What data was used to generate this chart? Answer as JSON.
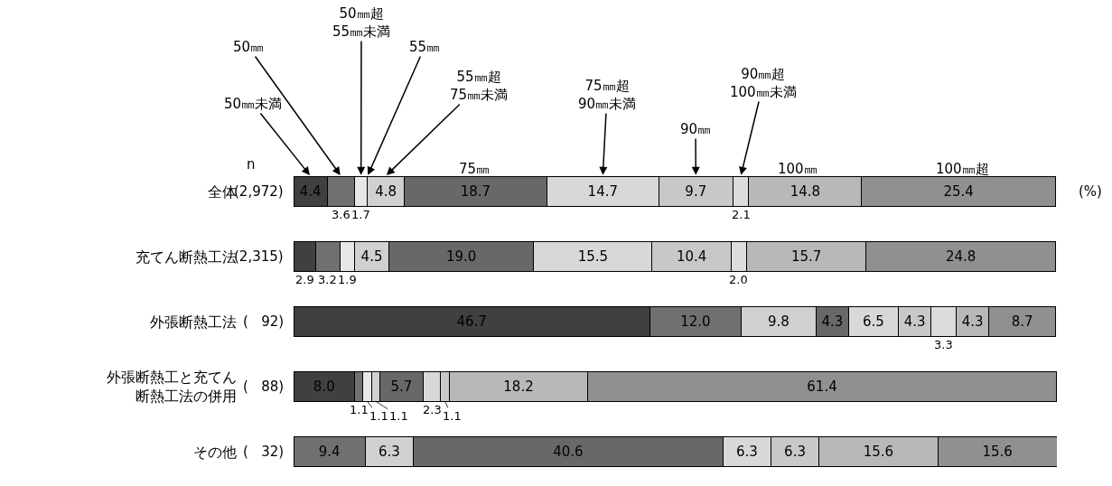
{
  "chart_data": {
    "type": "bar",
    "orientation": "horizontal",
    "stacked": true,
    "tick_labels": "y",
    "categories": [
      "全体",
      "充てん断熱工法",
      "外張断熱工法",
      "外張断熱工と充てん断熱工法の併用",
      "その他"
    ],
    "xlim": [
      0,
      100.1
    ],
    "series": [
      {
        "name": "50㎜未満",
        "color": "#404040",
        "values": [
          4.4,
          2.9,
          46.7,
          8.0,
          null
        ],
        "value_labels": [
          "4.4",
          "2.9",
          "46.7",
          "8.0",
          null
        ]
      },
      {
        "name": "50㎜",
        "color": "#707070",
        "values": [
          3.6,
          3.2,
          12.0,
          1.1,
          9.4
        ],
        "value_labels": [
          "3.6",
          "3.2",
          "12.0",
          "1.1",
          "9.4"
        ]
      },
      {
        "name": "50㎜超55㎜未満",
        "color": "#e8e8e8",
        "values": [
          1.7,
          1.9,
          null,
          1.1,
          null
        ],
        "value_labels": [
          "1.7",
          "1.9",
          null,
          "1.1",
          null
        ]
      },
      {
        "name": "55㎜",
        "values": [
          null,
          null,
          null,
          null,
          null
        ]
      },
      {
        "name": "55㎜超75㎜未満",
        "color": "#d0d0d0",
        "values": [
          4.8,
          4.5,
          9.8,
          1.1,
          6.3
        ],
        "value_labels": [
          "4.8",
          "4.5",
          "9.8",
          "1.1",
          "6.3"
        ]
      },
      {
        "name": "75㎜",
        "color": "#686868",
        "values": [
          18.7,
          19.0,
          4.3,
          5.7,
          40.6
        ],
        "value_labels": [
          "18.7",
          "19.0",
          "4.3",
          "5.7",
          "40.6"
        ]
      },
      {
        "name": "75㎜超90㎜未満",
        "color": "#d8d8d8",
        "values": [
          14.7,
          15.5,
          6.5,
          2.3,
          6.3
        ],
        "value_labels": [
          "14.7",
          "15.5",
          "6.5",
          "2.3",
          "6.3"
        ]
      },
      {
        "name": "90㎜",
        "color": "#c8c8c8",
        "values": [
          9.7,
          10.4,
          4.3,
          1.1,
          6.3
        ],
        "value_labels": [
          "9.7",
          "10.4",
          "4.3",
          "1.1",
          "6.3"
        ]
      },
      {
        "name": "90㎜超100㎜未満",
        "color": "#dcdcdc",
        "values": [
          2.1,
          2.0,
          3.3,
          null,
          null
        ],
        "value_labels": [
          "2.1",
          "2.0",
          "3.3",
          null,
          null
        ]
      },
      {
        "name": "100㎜",
        "color": "#b8b8b8",
        "values": [
          14.8,
          15.7,
          4.3,
          18.2,
          15.6
        ],
        "value_labels": [
          "14.8",
          "15.7",
          "4.3",
          "18.2",
          "15.6"
        ]
      },
      {
        "name": "100㎜超",
        "color": "#909090",
        "values": [
          25.4,
          24.8,
          8.7,
          61.4,
          15.6
        ],
        "value_labels": [
          "25.4",
          "24.8",
          "8.7",
          "61.4",
          "15.6"
        ]
      }
    ],
    "annotations": [
      "n",
      "(2,972)",
      "(2,315)",
      "(   92)",
      "(   88)",
      "(   32)",
      "(%)"
    ]
  }
}
